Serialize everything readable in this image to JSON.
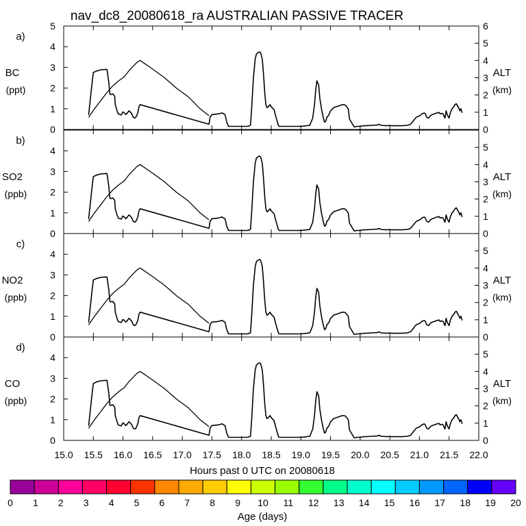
{
  "title": "nav_dc8_20080618_ra AUSTRALIAN PASSIVE TRACER",
  "chart_data": {
    "type": "line",
    "xlabel": "Hours past 0 UTC on 20080618",
    "xlim": [
      15.0,
      22.0
    ],
    "x_ticks": [
      "15.0",
      "15.5",
      "16.0",
      "16.5",
      "17.0",
      "17.5",
      "18.0",
      "18.5",
      "19.0",
      "19.5",
      "20.0",
      "20.5",
      "21.0",
      "21.5",
      "22.0"
    ],
    "altitude": {
      "name": "ALT",
      "unit": "(km)",
      "x": [
        15.42,
        15.52,
        15.62,
        15.72,
        15.82,
        15.92,
        16.02,
        16.1,
        16.18,
        16.24,
        16.29,
        16.5,
        16.7,
        16.9,
        17.1,
        17.3,
        17.45
      ],
      "y": [
        0.7,
        1.2,
        1.65,
        2.1,
        2.5,
        2.8,
        3.05,
        3.4,
        3.7,
        3.9,
        4.0,
        3.5,
        3.0,
        2.4,
        1.9,
        1.2,
        0.8
      ]
    },
    "tracer": {
      "x": [
        15.42,
        15.45,
        15.48,
        15.5,
        15.55,
        15.62,
        15.7,
        15.73,
        15.76,
        15.78,
        15.8,
        15.83,
        15.86,
        15.87,
        15.9,
        15.92,
        15.95,
        15.97,
        16.0,
        16.02,
        16.05,
        16.08,
        16.1,
        16.12,
        16.15,
        16.17,
        16.2,
        16.22,
        16.25,
        16.27,
        16.29,
        17.45,
        17.47,
        17.5,
        17.6,
        17.65,
        17.67,
        17.7,
        17.72,
        17.75,
        17.78,
        17.82,
        17.85,
        17.9,
        17.95,
        18.0,
        18.05,
        18.1,
        18.15,
        18.17,
        18.2,
        18.23,
        18.25,
        18.28,
        18.3,
        18.32,
        18.35,
        18.37,
        18.39,
        18.41,
        18.43,
        18.45,
        18.48,
        18.5,
        18.55,
        18.57,
        18.6,
        18.62,
        18.63,
        18.7,
        18.8,
        18.9,
        19.0,
        19.1,
        19.15,
        19.2,
        19.23,
        19.25,
        19.27,
        19.3,
        19.32,
        19.35,
        19.38,
        19.4,
        19.42,
        19.44,
        19.46,
        19.48,
        19.5,
        19.52,
        19.55,
        19.6,
        19.65,
        19.7,
        19.72,
        19.75,
        19.8,
        19.82,
        19.9,
        19.95,
        20.0,
        20.05,
        20.1,
        20.2,
        20.3,
        20.32,
        20.35,
        20.45,
        20.5,
        20.52,
        20.6,
        20.7,
        20.8,
        20.85,
        20.88,
        20.92,
        20.95,
        21.0,
        21.02,
        21.04,
        21.08,
        21.1,
        21.12,
        21.15,
        21.2,
        21.25,
        21.28,
        21.3,
        21.33,
        21.35,
        21.38,
        21.4,
        21.42,
        21.43,
        21.45,
        21.47,
        21.5,
        21.52,
        21.55,
        21.58,
        21.6,
        21.62,
        21.63,
        21.65,
        21.67,
        21.68,
        21.7,
        21.72
      ],
      "y": [
        0.7,
        1.5,
        2.3,
        2.75,
        2.82,
        2.88,
        2.9,
        2.9,
        2.3,
        1.7,
        1.7,
        1.72,
        1.6,
        1.2,
        0.9,
        0.75,
        0.72,
        0.7,
        0.85,
        0.8,
        0.72,
        0.82,
        0.9,
        0.85,
        0.75,
        0.6,
        0.55,
        0.6,
        0.8,
        1.1,
        1.2,
        0.25,
        0.6,
        0.72,
        0.75,
        0.78,
        0.8,
        0.75,
        0.72,
        0.35,
        0.15,
        0.15,
        0.15,
        0.15,
        0.15,
        0.15,
        0.15,
        0.15,
        0.2,
        1.0,
        2.5,
        3.4,
        3.65,
        3.72,
        3.75,
        3.72,
        3.4,
        2.7,
        1.8,
        1.2,
        1.05,
        1.1,
        1.2,
        1.1,
        0.95,
        0.7,
        0.4,
        0.2,
        0.15,
        0.15,
        0.15,
        0.15,
        0.15,
        0.18,
        0.2,
        0.55,
        1.2,
        1.9,
        2.35,
        2.15,
        1.5,
        0.95,
        0.55,
        0.35,
        0.4,
        0.6,
        0.65,
        0.75,
        0.9,
        0.95,
        1.05,
        1.1,
        1.15,
        1.2,
        1.2,
        1.18,
        1.0,
        0.5,
        0.12,
        0.15,
        0.15,
        0.18,
        0.18,
        0.2,
        0.22,
        0.25,
        0.2,
        0.18,
        0.2,
        0.18,
        0.18,
        0.18,
        0.2,
        0.25,
        0.35,
        0.5,
        0.6,
        0.65,
        0.7,
        0.75,
        0.8,
        0.75,
        0.6,
        0.55,
        0.7,
        0.75,
        0.78,
        0.8,
        0.82,
        0.75,
        0.78,
        0.75,
        0.6,
        0.55,
        0.9,
        0.7,
        0.55,
        0.8,
        1.0,
        1.1,
        1.2,
        1.25,
        1.2,
        1.1,
        1.0,
        0.9,
        1.0,
        0.8
      ]
    },
    "panels": [
      {
        "label": "a)",
        "species": "BC",
        "unit": "(ppt)",
        "ylim_left": [
          0,
          5
        ],
        "left_ticks": [
          "0",
          "1",
          "2",
          "3",
          "4",
          "5"
        ],
        "ylim_right": [
          0,
          6
        ],
        "right_ticks": [
          "0",
          "1",
          "2",
          "3",
          "4",
          "5",
          "6"
        ]
      },
      {
        "label": "b)",
        "species": "SO2",
        "unit": "(ppb)",
        "ylim_left": [
          0,
          5
        ],
        "left_ticks": [
          "0",
          "1",
          "2",
          "3",
          "4"
        ],
        "ylim_right": [
          0,
          6
        ],
        "right_ticks": [
          "0",
          "1",
          "2",
          "3",
          "4",
          "5"
        ]
      },
      {
        "label": "c)",
        "species": "NO2",
        "unit": "(ppb)",
        "ylim_left": [
          0,
          5
        ],
        "left_ticks": [
          "0",
          "1",
          "2",
          "3",
          "4"
        ],
        "ylim_right": [
          0,
          6
        ],
        "right_ticks": [
          "0",
          "1",
          "2",
          "3",
          "4",
          "5"
        ]
      },
      {
        "label": "d)",
        "species": "CO",
        "unit": "(ppb)",
        "ylim_left": [
          0,
          5
        ],
        "left_ticks": [
          "0",
          "1",
          "2",
          "3",
          "4"
        ],
        "ylim_right": [
          0,
          6
        ],
        "right_ticks": [
          "0",
          "1",
          "2",
          "3",
          "4",
          "5"
        ]
      }
    ]
  },
  "colorbar": {
    "label": "Age (days)",
    "ticks": [
      "0",
      "1",
      "2",
      "3",
      "4",
      "5",
      "6",
      "7",
      "8",
      "9",
      "10",
      "11",
      "12",
      "13",
      "14",
      "15",
      "16",
      "17",
      "18",
      "19",
      "20"
    ],
    "colors": [
      "#990099",
      "#cc0099",
      "#ff0099",
      "#ff0066",
      "#ff0033",
      "#ff3300",
      "#ff8800",
      "#ffaa00",
      "#ffcc00",
      "#ffff00",
      "#ccff00",
      "#99ff00",
      "#33ff33",
      "#00ff88",
      "#00ffcc",
      "#00ffff",
      "#00ccff",
      "#0099ff",
      "#0066ff",
      "#0000ff",
      "#6600ff"
    ]
  }
}
